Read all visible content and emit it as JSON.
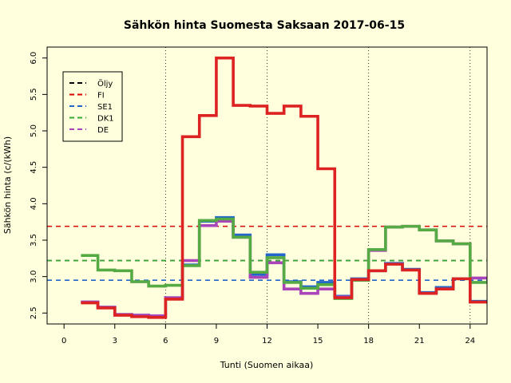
{
  "chart_data": {
    "type": "line",
    "title": "Sähkön hinta Suomesta Saksaan 2017-06-15",
    "xlabel": "Tunti (Suomen aikaa)",
    "ylabel": "Sähkön hinta (c/(kWh)",
    "xlim": [
      -1,
      25
    ],
    "ylim": [
      2.35,
      6.15
    ],
    "x_ticks": [
      0,
      3,
      6,
      9,
      12,
      15,
      18,
      21,
      24
    ],
    "x_tick_labels": [
      "0",
      "3",
      "6",
      "9",
      "12",
      "15",
      "18",
      "21",
      "24"
    ],
    "y_ticks": [
      2.5,
      3.0,
      3.5,
      4.0,
      4.5,
      5.0,
      5.5,
      6.0
    ],
    "y_tick_labels": [
      "2.5",
      "3.0",
      "3.5",
      "4.0",
      "4.5",
      "5.0",
      "5.5",
      "6.0"
    ],
    "vlines": [
      6,
      12,
      18,
      24
    ],
    "step_type": "step-post",
    "hours": [
      1,
      2,
      3,
      4,
      5,
      6,
      7,
      8,
      9,
      10,
      11,
      12,
      13,
      14,
      15,
      16,
      17,
      18,
      19,
      20,
      21,
      22,
      23,
      24,
      25
    ],
    "legend_position": "top-left",
    "legend": [
      {
        "name": "Öljy",
        "color": "#000000"
      },
      {
        "name": "FI",
        "color": "#DD0000"
      },
      {
        "name": "SE1",
        "color": "#2266CC"
      },
      {
        "name": "DK1",
        "color": "#33AA33"
      },
      {
        "name": "DE",
        "color": "#AA44BB"
      }
    ],
    "hlines": [
      {
        "series": "Öljy",
        "value": 3.22,
        "color": "#333333"
      },
      {
        "series": "FI",
        "value": 3.69,
        "color": "#DD0000"
      },
      {
        "series": "SE1",
        "value": 2.95,
        "color": "#2266CC"
      },
      {
        "series": "DK1",
        "value": 3.22,
        "color": "#33AA33"
      }
    ],
    "series": [
      {
        "name": "SE1",
        "color": "#2266CC",
        "values": [
          2.65,
          2.58,
          2.48,
          2.47,
          2.46,
          2.71,
          3.16,
          3.76,
          3.81,
          3.57,
          3.03,
          3.3,
          2.93,
          2.86,
          2.92,
          2.73,
          2.97,
          3.08,
          3.18,
          3.1,
          2.78,
          2.85,
          2.97,
          2.66,
          2.66
        ]
      },
      {
        "name": "DE",
        "color": "#AA44BB",
        "values": [
          2.65,
          2.58,
          2.48,
          2.47,
          2.46,
          2.71,
          3.22,
          3.7,
          3.76,
          3.54,
          2.99,
          3.19,
          2.83,
          2.77,
          2.83,
          2.72,
          2.96,
          3.36,
          3.68,
          3.69,
          3.64,
          3.49,
          3.45,
          2.98,
          2.98
        ]
      },
      {
        "name": "DK1",
        "color": "#55AA44",
        "values": [
          3.29,
          3.09,
          3.08,
          2.93,
          2.87,
          2.88,
          3.15,
          3.77,
          3.79,
          3.54,
          3.06,
          3.26,
          2.92,
          2.84,
          2.89,
          2.7,
          2.95,
          3.37,
          3.68,
          3.69,
          3.64,
          3.49,
          3.45,
          2.92,
          2.92
        ]
      },
      {
        "name": "FI",
        "color": "#DD2222",
        "values": [
          2.64,
          2.57,
          2.47,
          2.45,
          2.44,
          2.69,
          4.92,
          5.21,
          6.0,
          5.35,
          5.34,
          5.24,
          5.34,
          5.2,
          4.48,
          2.71,
          2.96,
          3.08,
          3.17,
          3.09,
          2.77,
          2.83,
          2.97,
          2.65,
          2.65
        ]
      }
    ]
  }
}
